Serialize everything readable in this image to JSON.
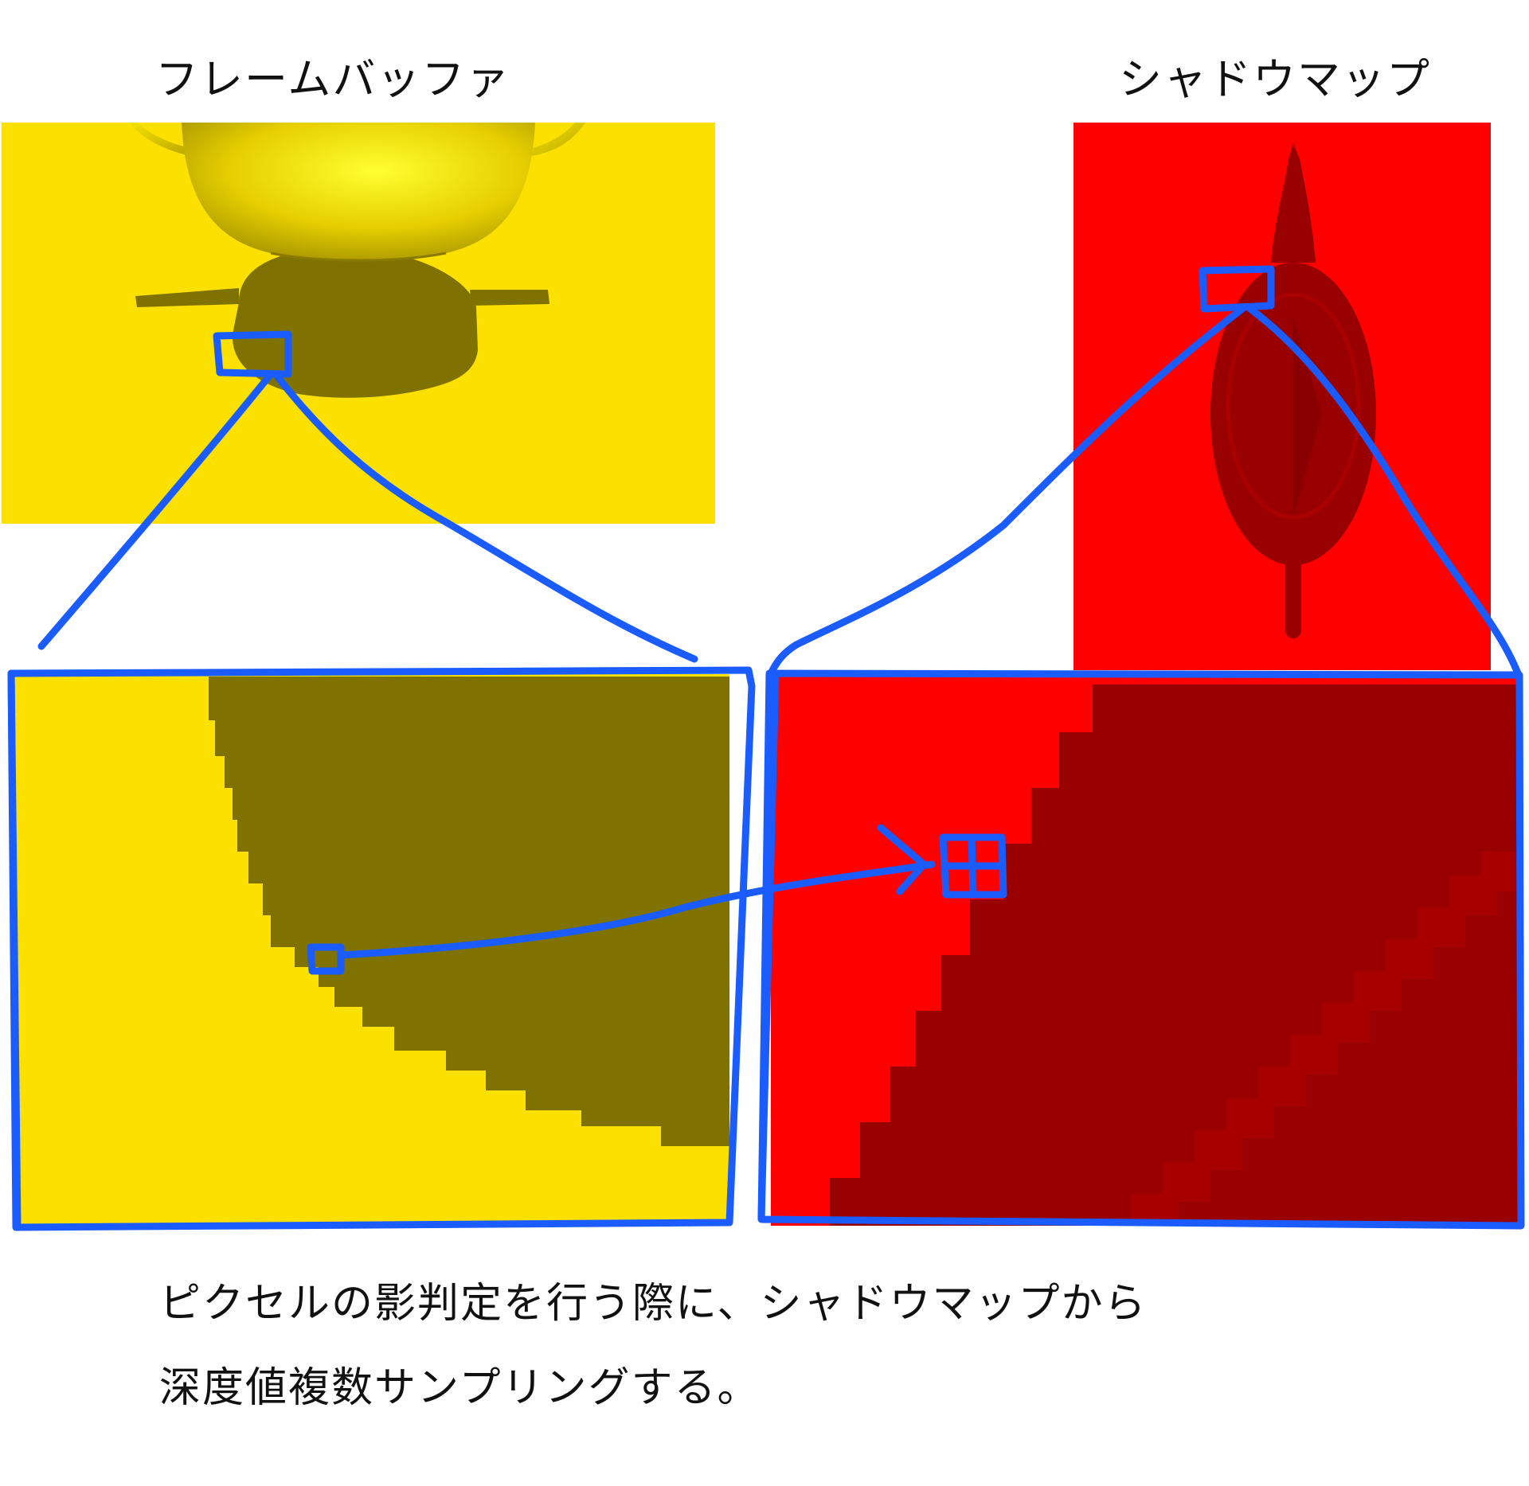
{
  "labels": {
    "framebuffer": "フレームバッファ",
    "shadowmap": "シャドウマップ"
  },
  "caption": {
    "line1": "ピクセルの影判定を行う際に、シャドウマップから",
    "line2": "深度値複数サンプリングする。"
  },
  "colors": {
    "floor_yellow": "#fbe000",
    "shadow_olive": "#7f7200",
    "map_red": "#ff0000",
    "map_dark": "#990000",
    "map_mid": "#a80000",
    "annotation_blue": "#1a5cff"
  }
}
